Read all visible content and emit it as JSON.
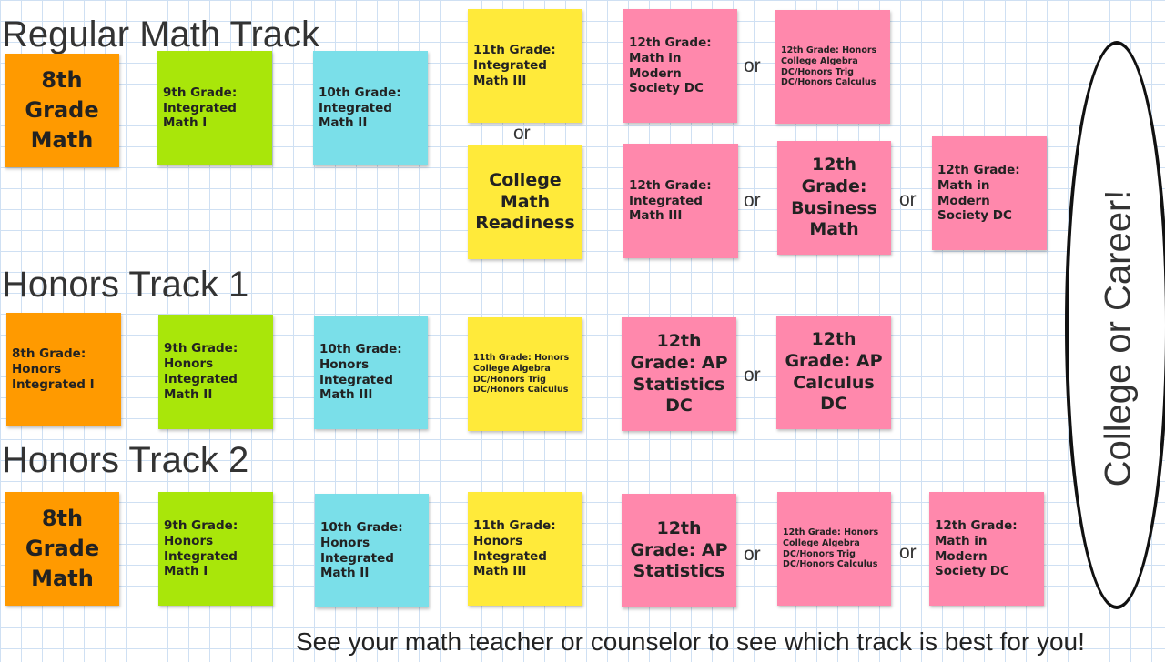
{
  "tracks": {
    "regular": {
      "heading": "Regular Math Track",
      "g8": "8th Grade Math",
      "g9": "9th Grade: Integrated Math I",
      "g10": "10th Grade: Integrated Math II",
      "g11a": "11th Grade: Integrated Math III",
      "or_11": "or",
      "g11b": "College Math Readiness",
      "row1": {
        "opt1": "12th Grade: Math in Modern Society DC",
        "or1": "or",
        "opt2": "12th Grade: Honors College Algebra DC/Honors Trig DC/Honors Calculus"
      },
      "row2": {
        "opt1": "12th Grade: Integrated Math III",
        "or1": "or",
        "opt2": "12th Grade: Business Math",
        "or2": "or",
        "opt3": "12th Grade: Math in Modern Society DC"
      }
    },
    "honors1": {
      "heading": "Honors Track 1",
      "g8": "8th Grade: Honors Integrated I",
      "g9": "9th Grade: Honors Integrated Math II",
      "g10": "10th Grade: Honors Integrated Math III",
      "g11": "11th Grade: Honors College Algebra DC/Honors Trig DC/Honors Calculus",
      "opt1": "12th Grade: AP Statistics DC",
      "or1": "or",
      "opt2": "12th Grade: AP Calculus DC"
    },
    "honors2": {
      "heading": "Honors Track 2",
      "g8": "8th Grade Math",
      "g9": "9th Grade: Honors Integrated Math I",
      "g10": "10th Grade: Honors Integrated Math II",
      "g11": "11th Grade: Honors Integrated Math III",
      "opt1": "12th Grade: AP Statistics",
      "or1": "or",
      "opt2": "12th Grade: Honors College Algebra DC/Honors Trig DC/Honors Calculus",
      "or2": "or",
      "opt3": "12th Grade: Math in Modern Society DC"
    }
  },
  "destination": "College or Career!",
  "footer": "See your math teacher or counselor to see which track is best for you!",
  "colors": {
    "grade8": "#ff9a00",
    "grade9": "#a9e60a",
    "grade10": "#7adfe9",
    "grade11": "#ffea3a",
    "grade12": "#ff88ac",
    "grid": "#cfe0f3"
  }
}
